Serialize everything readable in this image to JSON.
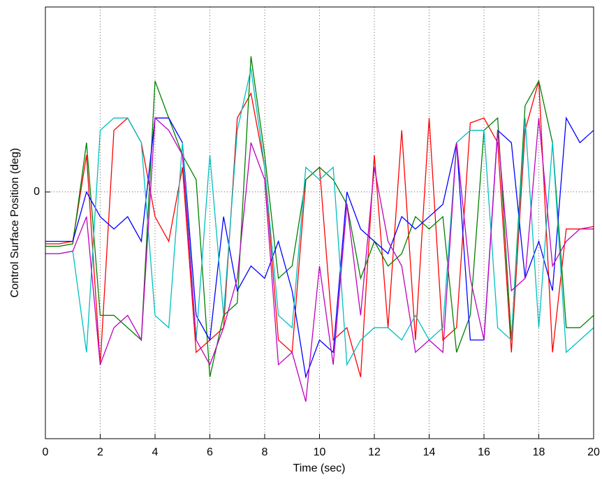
{
  "chart_data": {
    "type": "line",
    "xlabel": "Time (sec)",
    "ylabel": "Control Surface Position (deg)",
    "xlim": [
      0,
      20
    ],
    "ylim": [
      -1,
      0.75
    ],
    "xticks": [
      0,
      2,
      4,
      6,
      8,
      10,
      12,
      14,
      16,
      18,
      20
    ],
    "yticks": [
      0
    ],
    "grid": true,
    "x": [
      0,
      0.5,
      1,
      1.5,
      2,
      2.5,
      3,
      3.5,
      4,
      4.5,
      5,
      5.5,
      6,
      6.5,
      7,
      7.5,
      8,
      8.5,
      9,
      9.5,
      10,
      10.5,
      11,
      11.5,
      12,
      12.5,
      13,
      13.5,
      14,
      14.5,
      15,
      15.5,
      16,
      16.5,
      17,
      17.5,
      18,
      18.5,
      19,
      19.5,
      20
    ],
    "series": [
      {
        "color": "#ff0000",
        "values": [
          -0.21,
          -0.21,
          -0.2,
          0.15,
          -0.7,
          0.25,
          0.3,
          0.2,
          -0.1,
          -0.2,
          0.1,
          -0.65,
          -0.6,
          -0.55,
          0.3,
          0.4,
          0.1,
          -0.6,
          -0.65,
          0.05,
          0.1,
          -0.6,
          -0.55,
          -0.75,
          0.15,
          -0.55,
          0.25,
          -0.6,
          0.3,
          -0.6,
          -0.55,
          0.28,
          0.3,
          0.2,
          -0.65,
          0.25,
          0.45,
          -0.65,
          -0.15,
          -0.15,
          -0.14
        ]
      },
      {
        "color": "#008000",
        "values": [
          -0.22,
          -0.22,
          -0.21,
          0.2,
          -0.5,
          -0.5,
          -0.55,
          -0.6,
          0.45,
          0.3,
          0.15,
          0.05,
          -0.75,
          -0.5,
          -0.45,
          0.55,
          0.15,
          -0.35,
          -0.3,
          0.05,
          0.1,
          0.05,
          -0.05,
          -0.35,
          -0.2,
          -0.3,
          -0.25,
          -0.1,
          -0.15,
          -0.1,
          -0.65,
          -0.5,
          0.25,
          0.3,
          -0.6,
          0.35,
          0.45,
          0.2,
          -0.55,
          -0.55,
          -0.5
        ]
      },
      {
        "color": "#0000ff",
        "values": [
          -0.2,
          -0.2,
          -0.2,
          0,
          -0.1,
          -0.15,
          -0.1,
          -0.2,
          0.3,
          0.3,
          0.2,
          -0.5,
          -0.6,
          -0.1,
          -0.4,
          -0.3,
          -0.35,
          -0.2,
          -0.4,
          -0.75,
          -0.6,
          -0.65,
          0,
          -0.15,
          -0.2,
          -0.25,
          -0.1,
          -0.15,
          -0.1,
          -0.05,
          0.2,
          -0.6,
          -0.6,
          0.25,
          0.2,
          -0.35,
          -0.2,
          -0.4,
          0.3,
          0.2,
          0.25
        ]
      },
      {
        "color": "#00bfbf",
        "values": [
          -0.25,
          -0.25,
          -0.24,
          -0.65,
          0.25,
          0.3,
          0.3,
          0.2,
          -0.5,
          -0.55,
          0.2,
          -0.6,
          0.15,
          -0.5,
          0.25,
          0.5,
          0.1,
          -0.5,
          -0.55,
          0.1,
          0.05,
          0.1,
          -0.7,
          -0.6,
          -0.55,
          -0.55,
          -0.6,
          -0.5,
          -0.6,
          -0.55,
          0.2,
          0.25,
          0.25,
          -0.55,
          -0.6,
          0.3,
          -0.55,
          0.2,
          -0.65,
          -0.6,
          -0.55
        ]
      },
      {
        "color": "#bf00bf",
        "values": [
          -0.25,
          -0.25,
          -0.24,
          -0.1,
          -0.7,
          -0.55,
          -0.5,
          -0.6,
          0.3,
          0.25,
          0.15,
          -0.6,
          -0.7,
          -0.55,
          -0.35,
          0.2,
          0.05,
          -0.7,
          -0.65,
          -0.85,
          -0.3,
          -0.7,
          -0.05,
          -0.5,
          0.1,
          -0.2,
          -0.3,
          -0.65,
          -0.6,
          -0.65,
          0.2,
          -0.35,
          -0.6,
          0.25,
          -0.4,
          -0.35,
          0.3,
          -0.3,
          -0.2,
          -0.15,
          -0.15
        ]
      }
    ]
  }
}
